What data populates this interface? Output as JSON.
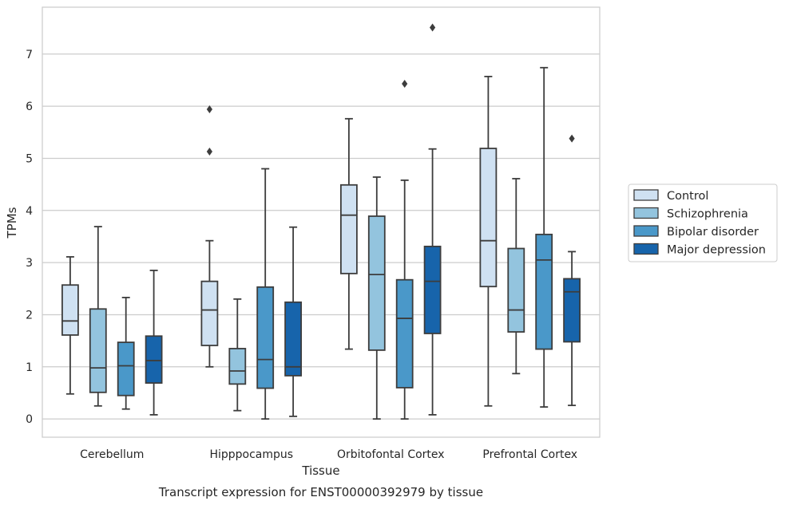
{
  "chart_data": {
    "type": "box",
    "title": "Transcript expression for ENST00000392979 by tissue",
    "xlabel": "Tissue",
    "ylabel": "TPMs",
    "ylim": [
      -0.35,
      7.9
    ],
    "yticks": [
      0,
      1,
      2,
      3,
      4,
      5,
      6,
      7
    ],
    "categories": [
      "Cerebellum",
      "Hipppocampus",
      "Orbitofontal Cortex",
      "Prefrontal Cortex"
    ],
    "grid": "horizontal",
    "legend_position": "right",
    "series": [
      {
        "name": "Control",
        "color": "#cfe1f2",
        "boxes": [
          {
            "min": 0.48,
            "q1": 1.61,
            "median": 1.88,
            "q3": 2.57,
            "max": 3.11,
            "outliers": []
          },
          {
            "min": 1.0,
            "q1": 1.41,
            "median": 2.09,
            "q3": 2.64,
            "max": 3.42,
            "outliers": [
              5.94,
              5.13
            ]
          },
          {
            "min": 1.34,
            "q1": 2.79,
            "median": 3.91,
            "q3": 4.49,
            "max": 5.76,
            "outliers": []
          },
          {
            "min": 0.25,
            "q1": 2.54,
            "median": 3.42,
            "q3": 5.19,
            "max": 6.57,
            "outliers": []
          }
        ]
      },
      {
        "name": "Schizophrenia",
        "color": "#93c4de",
        "boxes": [
          {
            "min": 0.25,
            "q1": 0.51,
            "median": 0.98,
            "q3": 2.11,
            "max": 3.69,
            "outliers": []
          },
          {
            "min": 0.16,
            "q1": 0.67,
            "median": 0.92,
            "q3": 1.35,
            "max": 2.3,
            "outliers": []
          },
          {
            "min": 0.0,
            "q1": 1.32,
            "median": 2.77,
            "q3": 3.89,
            "max": 4.64,
            "outliers": []
          },
          {
            "min": 0.87,
            "q1": 1.67,
            "median": 2.09,
            "q3": 3.27,
            "max": 4.61,
            "outliers": []
          }
        ]
      },
      {
        "name": "Bipolar disorder",
        "color": "#4a98c9",
        "boxes": [
          {
            "min": 0.19,
            "q1": 0.45,
            "median": 1.02,
            "q3": 1.47,
            "max": 2.33,
            "outliers": []
          },
          {
            "min": 0.0,
            "q1": 0.59,
            "median": 1.14,
            "q3": 2.53,
            "max": 4.8,
            "outliers": []
          },
          {
            "min": 0.0,
            "q1": 0.6,
            "median": 1.93,
            "q3": 2.67,
            "max": 4.58,
            "outliers": [
              6.43
            ]
          },
          {
            "min": 0.23,
            "q1": 1.34,
            "median": 3.05,
            "q3": 3.54,
            "max": 6.74,
            "outliers": []
          }
        ]
      },
      {
        "name": "Major depression",
        "color": "#1764ab",
        "boxes": [
          {
            "min": 0.08,
            "q1": 0.69,
            "median": 1.12,
            "q3": 1.59,
            "max": 2.85,
            "outliers": []
          },
          {
            "min": 0.05,
            "q1": 0.83,
            "median": 1.0,
            "q3": 2.24,
            "max": 3.68,
            "outliers": []
          },
          {
            "min": 0.08,
            "q1": 1.64,
            "median": 2.64,
            "q3": 3.31,
            "max": 5.18,
            "outliers": [
              7.51
            ]
          },
          {
            "min": 0.26,
            "q1": 1.48,
            "median": 2.44,
            "q3": 2.69,
            "max": 3.21,
            "outliers": [
              5.38
            ]
          }
        ]
      }
    ]
  }
}
